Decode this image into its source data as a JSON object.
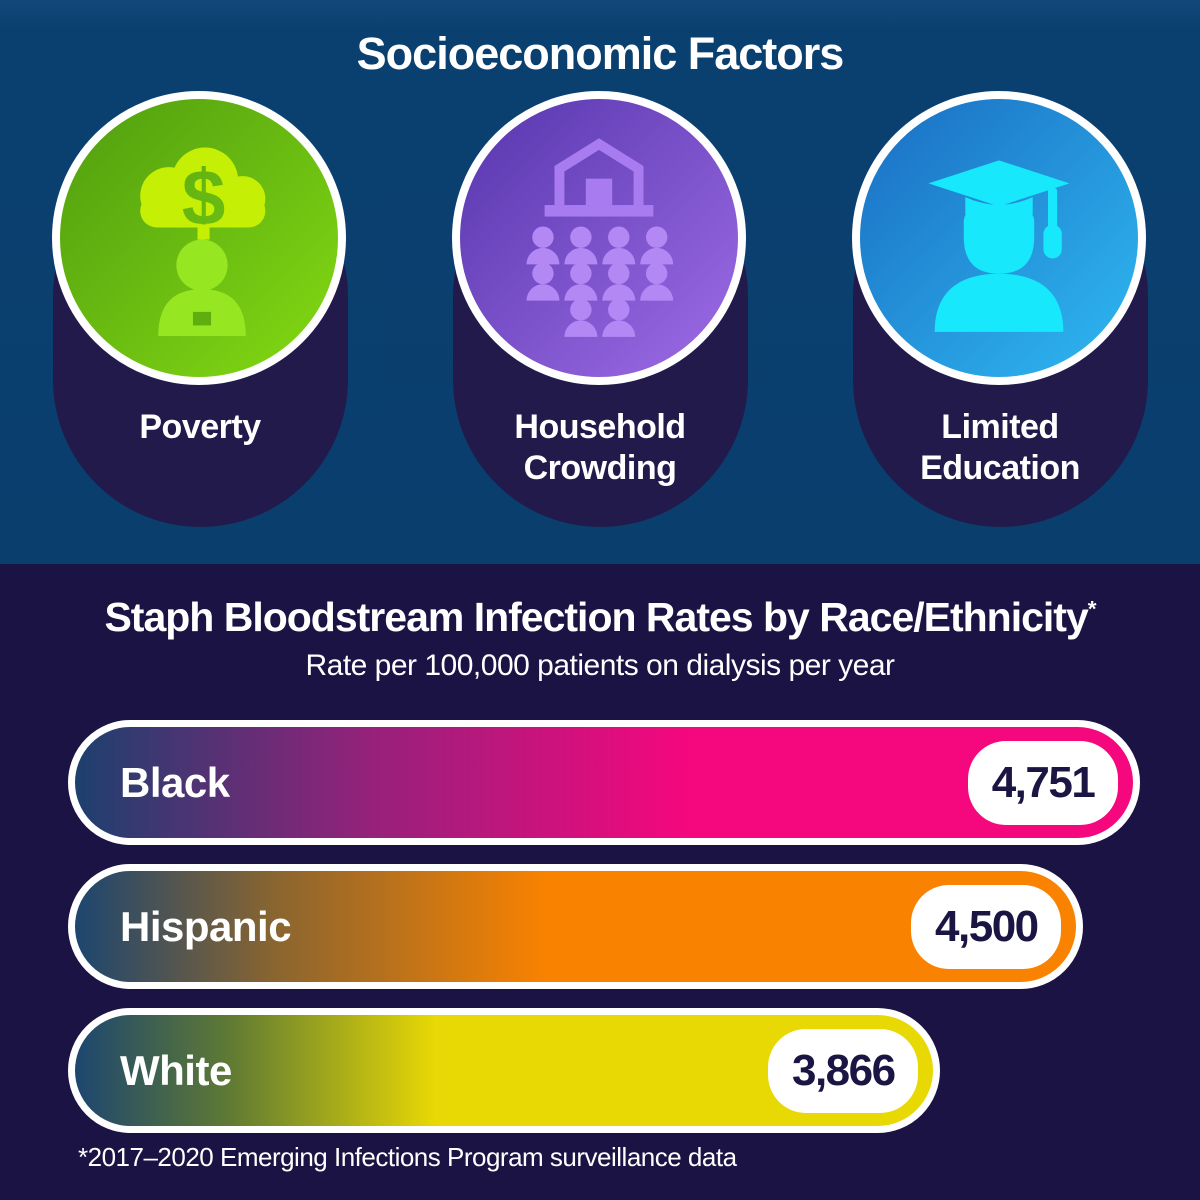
{
  "header": {
    "title": "Socioeconomic Factors"
  },
  "factors": [
    {
      "label": "Poverty",
      "icon": "poverty-money-cloud-person-icon",
      "circle_gradient": [
        "#4f9d10",
        "#84da12"
      ]
    },
    {
      "label": "Household Crowding",
      "icon": "household-crowding-house-people-icon",
      "circle_gradient": [
        "#5636ad",
        "#9e6ce6"
      ]
    },
    {
      "label": "Limited Education",
      "icon": "graduation-cap-person-icon",
      "circle_gradient": [
        "#1a6dc2",
        "#2fb9f2"
      ]
    }
  ],
  "chart_data": {
    "type": "bar",
    "orientation": "horizontal",
    "title": "Staph Bloodstream Infection Rates by Race/Ethnicity",
    "title_superscript": "*",
    "subtitle": "Rate per 100,000 patients on dialysis per year",
    "categories": [
      "Black",
      "Hispanic",
      "White"
    ],
    "values": [
      4751,
      4500,
      3866
    ],
    "value_labels": [
      "4,751",
      "4,500",
      "3,866"
    ],
    "xlim": [
      0,
      4751
    ],
    "grid": false,
    "legend": false,
    "bar_gradients": [
      [
        {
          "color": "#1d406e",
          "pos": 0
        },
        {
          "color": "#96217b",
          "pos": 28
        },
        {
          "color": "#f5077e",
          "pos": 58
        }
      ],
      [
        {
          "color": "#1d466f",
          "pos": 0
        },
        {
          "color": "#8a6530",
          "pos": 20
        },
        {
          "color": "#f98200",
          "pos": 47
        }
      ],
      [
        {
          "color": "#1d466f",
          "pos": 0
        },
        {
          "color": "#5f7a33",
          "pos": 18
        },
        {
          "color": "#e8d804",
          "pos": 42
        }
      ]
    ],
    "footnote": "*2017–2020 Emerging Infections Program surveillance data"
  },
  "colors": {
    "top_background": "#0a4070",
    "bottom_background": "#1a1343",
    "pill_background": "#221a4b",
    "bar_border": "#ffffff",
    "badge_background": "#ffffff",
    "badge_text": "#1b1544",
    "text": "#ffffff"
  }
}
